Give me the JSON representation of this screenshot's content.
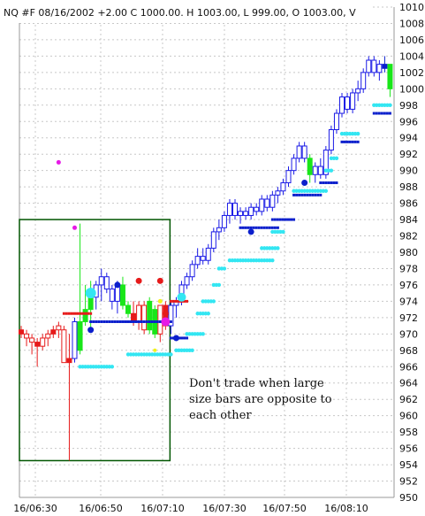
{
  "header": {
    "text": "NQ #F 08/16/2002  +2.00 C 1000.00. H 1003.00, L 999.00, O 1003.00,  V"
  },
  "annotation": {
    "line1": "Don't trade when large",
    "line2": "size bars are opposite to",
    "line3": "each other"
  },
  "colors": {
    "up": "#1a1ae6",
    "down": "#e61a1a",
    "green": "#19e619",
    "cyan": "#33e6f2",
    "navy": "#0b1fcc",
    "magenta": "#e619e6",
    "yellow": "#f2f21a",
    "box": "#005500",
    "grid": "#c8c8c8"
  },
  "chart_data": {
    "type": "candlestick",
    "title": "NQ #F 08/16/2002",
    "x_tick_labels": [
      "16/06:30",
      "16/06:50",
      "16/07:10",
      "16/07:30",
      "16/07:50",
      "16/08:10"
    ],
    "y_tick_labels": [
      "950",
      "952",
      "954",
      "956",
      "958",
      "960",
      "962",
      "964",
      "966",
      "968",
      "970",
      "972",
      "974",
      "976",
      "978",
      "980",
      "982",
      "984",
      "986",
      "988",
      "990",
      "992",
      "994",
      "996",
      "998",
      "1000",
      "1002",
      "1004",
      "1006",
      "1008",
      "1010"
    ],
    "ylim": [
      950,
      1010
    ],
    "grid": true,
    "bars": [
      {
        "o": 970.5,
        "h": 971.0,
        "l": 969.5,
        "c": 970.0,
        "col": "down"
      },
      {
        "o": 970.0,
        "h": 970.5,
        "l": 968.5,
        "c": 969.5,
        "col": "down"
      },
      {
        "o": 969.5,
        "h": 970.0,
        "l": 967.5,
        "c": 969.0,
        "col": "down"
      },
      {
        "o": 969.0,
        "h": 969.5,
        "l": 966.0,
        "c": 968.5,
        "col": "down"
      },
      {
        "o": 968.5,
        "h": 970.0,
        "l": 968.0,
        "c": 969.5,
        "col": "down"
      },
      {
        "o": 969.5,
        "h": 970.5,
        "l": 968.5,
        "c": 970.0,
        "col": "down"
      },
      {
        "o": 970.0,
        "h": 971.0,
        "l": 969.5,
        "c": 970.5,
        "col": "down"
      },
      {
        "o": 971.0,
        "h": 971.5,
        "l": 969.5,
        "c": 970.5,
        "col": "down"
      },
      {
        "o": 970.5,
        "h": 971.0,
        "l": 966.5,
        "c": 966.5,
        "col": "down"
      },
      {
        "o": 967.0,
        "h": 970.0,
        "l": 954.5,
        "c": 966.5,
        "col": "down"
      },
      {
        "o": 967.0,
        "h": 972.0,
        "l": 966.5,
        "c": 971.5,
        "col": "up"
      },
      {
        "o": 968.0,
        "h": 983.5,
        "l": 967.5,
        "c": 971.5,
        "col": "green"
      },
      {
        "o": 971.5,
        "h": 976.0,
        "l": 971.0,
        "c": 973.0,
        "col": "green"
      },
      {
        "o": 973.0,
        "h": 976.5,
        "l": 970.5,
        "c": 974.5,
        "col": "green"
      },
      {
        "o": 974.5,
        "h": 976.5,
        "l": 973.0,
        "c": 976.0,
        "col": "up"
      },
      {
        "o": 976.0,
        "h": 978.0,
        "l": 974.0,
        "c": 977.0,
        "col": "up"
      },
      {
        "o": 977.0,
        "h": 977.5,
        "l": 975.0,
        "c": 975.5,
        "col": "up"
      },
      {
        "o": 975.5,
        "h": 976.0,
        "l": 973.0,
        "c": 974.0,
        "col": "up"
      },
      {
        "o": 974.0,
        "h": 976.5,
        "l": 972.5,
        "c": 976.0,
        "col": "up"
      },
      {
        "o": 976.0,
        "h": 977.0,
        "l": 973.0,
        "c": 973.5,
        "col": "green"
      },
      {
        "o": 973.5,
        "h": 974.0,
        "l": 972.0,
        "c": 972.5,
        "col": "green"
      },
      {
        "o": 972.5,
        "h": 974.0,
        "l": 971.0,
        "c": 971.5,
        "col": "down"
      },
      {
        "o": 971.5,
        "h": 974.0,
        "l": 970.5,
        "c": 973.5,
        "col": "down"
      },
      {
        "o": 973.5,
        "h": 974.0,
        "l": 970.0,
        "c": 970.5,
        "col": "down"
      },
      {
        "o": 970.5,
        "h": 974.5,
        "l": 970.0,
        "c": 974.0,
        "col": "green"
      },
      {
        "o": 973.0,
        "h": 973.5,
        "l": 969.5,
        "c": 970.0,
        "col": "green"
      },
      {
        "o": 970.0,
        "h": 973.5,
        "l": 969.0,
        "c": 973.5,
        "col": "down"
      },
      {
        "o": 973.5,
        "h": 974.0,
        "l": 970.5,
        "c": 971.0,
        "col": "down"
      },
      {
        "o": 971.0,
        "h": 974.0,
        "l": 970.0,
        "c": 973.5,
        "col": "up"
      },
      {
        "o": 973.5,
        "h": 974.5,
        "l": 972.0,
        "c": 974.0,
        "col": "up"
      },
      {
        "o": 974.0,
        "h": 976.5,
        "l": 973.5,
        "c": 976.0,
        "col": "up"
      },
      {
        "o": 976.0,
        "h": 977.5,
        "l": 975.5,
        "c": 977.0,
        "col": "up"
      },
      {
        "o": 977.0,
        "h": 979.0,
        "l": 976.5,
        "c": 978.5,
        "col": "up"
      },
      {
        "o": 978.5,
        "h": 980.5,
        "l": 978.0,
        "c": 979.5,
        "col": "up"
      },
      {
        "o": 979.5,
        "h": 980.5,
        "l": 978.5,
        "c": 979.0,
        "col": "up"
      },
      {
        "o": 979.0,
        "h": 981.0,
        "l": 978.5,
        "c": 980.5,
        "col": "up"
      },
      {
        "o": 980.5,
        "h": 983.0,
        "l": 980.0,
        "c": 982.5,
        "col": "up"
      },
      {
        "o": 982.5,
        "h": 984.0,
        "l": 981.5,
        "c": 983.0,
        "col": "up"
      },
      {
        "o": 983.0,
        "h": 985.0,
        "l": 982.5,
        "c": 984.5,
        "col": "up"
      },
      {
        "o": 984.5,
        "h": 986.5,
        "l": 983.5,
        "c": 986.0,
        "col": "up"
      },
      {
        "o": 986.0,
        "h": 986.5,
        "l": 984.0,
        "c": 984.5,
        "col": "up"
      },
      {
        "o": 984.5,
        "h": 985.5,
        "l": 983.5,
        "c": 985.0,
        "col": "up"
      },
      {
        "o": 985.0,
        "h": 985.5,
        "l": 984.0,
        "c": 984.5,
        "col": "up"
      },
      {
        "o": 984.5,
        "h": 986.0,
        "l": 984.0,
        "c": 985.5,
        "col": "up"
      },
      {
        "o": 985.5,
        "h": 986.0,
        "l": 984.5,
        "c": 985.0,
        "col": "up"
      },
      {
        "o": 985.0,
        "h": 987.0,
        "l": 984.5,
        "c": 986.5,
        "col": "up"
      },
      {
        "o": 986.5,
        "h": 987.0,
        "l": 985.0,
        "c": 985.5,
        "col": "up"
      },
      {
        "o": 985.5,
        "h": 987.5,
        "l": 985.0,
        "c": 987.0,
        "col": "up"
      },
      {
        "o": 987.0,
        "h": 988.0,
        "l": 986.0,
        "c": 987.5,
        "col": "up"
      },
      {
        "o": 987.5,
        "h": 989.0,
        "l": 987.0,
        "c": 988.5,
        "col": "up"
      },
      {
        "o": 988.5,
        "h": 990.5,
        "l": 988.0,
        "c": 990.0,
        "col": "up"
      },
      {
        "o": 990.0,
        "h": 992.0,
        "l": 989.5,
        "c": 991.5,
        "col": "up"
      },
      {
        "o": 991.5,
        "h": 993.5,
        "l": 991.0,
        "c": 993.0,
        "col": "up"
      },
      {
        "o": 993.0,
        "h": 993.5,
        "l": 991.0,
        "c": 991.5,
        "col": "up"
      },
      {
        "o": 991.5,
        "h": 992.0,
        "l": 988.5,
        "c": 989.5,
        "col": "green"
      },
      {
        "o": 989.5,
        "h": 991.0,
        "l": 988.5,
        "c": 990.5,
        "col": "up"
      },
      {
        "o": 990.5,
        "h": 991.5,
        "l": 989.0,
        "c": 989.5,
        "col": "up"
      },
      {
        "o": 989.5,
        "h": 993.0,
        "l": 989.0,
        "c": 992.5,
        "col": "up"
      },
      {
        "o": 992.5,
        "h": 995.5,
        "l": 992.0,
        "c": 995.0,
        "col": "up"
      },
      {
        "o": 995.0,
        "h": 997.5,
        "l": 994.5,
        "c": 997.0,
        "col": "up"
      },
      {
        "o": 997.0,
        "h": 999.5,
        "l": 996.5,
        "c": 999.0,
        "col": "up"
      },
      {
        "o": 999.0,
        "h": 999.5,
        "l": 997.0,
        "c": 997.5,
        "col": "up"
      },
      {
        "o": 997.5,
        "h": 1000.0,
        "l": 997.0,
        "c": 999.5,
        "col": "up"
      },
      {
        "o": 999.5,
        "h": 1001.0,
        "l": 998.5,
        "c": 1000.0,
        "col": "up"
      },
      {
        "o": 1000.0,
        "h": 1002.5,
        "l": 999.5,
        "c": 1002.0,
        "col": "up"
      },
      {
        "o": 1002.0,
        "h": 1004.0,
        "l": 1001.5,
        "c": 1003.5,
        "col": "up"
      },
      {
        "o": 1003.5,
        "h": 1004.0,
        "l": 1001.5,
        "c": 1002.0,
        "col": "up"
      },
      {
        "o": 1002.0,
        "h": 1003.5,
        "l": 1001.0,
        "c": 1003.0,
        "col": "up"
      },
      {
        "o": 1003.0,
        "h": 1004.0,
        "l": 1002.0,
        "c": 1002.5,
        "col": "navy"
      },
      {
        "o": 1003.0,
        "h": 1003.0,
        "l": 999.0,
        "c": 1000.0,
        "col": "green"
      }
    ],
    "dot_series": [
      {
        "color": "cyan",
        "y": 966.0,
        "from": 11,
        "to": 17
      },
      {
        "color": "cyan",
        "y": 967.5,
        "from": 20,
        "to": 28
      },
      {
        "color": "cyan",
        "y": 968.0,
        "from": 29,
        "to": 32
      },
      {
        "color": "cyan",
        "y": 970.0,
        "from": 31,
        "to": 34
      },
      {
        "color": "cyan",
        "y": 972.5,
        "from": 33,
        "to": 35
      },
      {
        "color": "cyan",
        "y": 974.0,
        "from": 34,
        "to": 36
      },
      {
        "color": "cyan",
        "y": 976.0,
        "from": 36,
        "to": 37
      },
      {
        "color": "cyan",
        "y": 978.0,
        "from": 37,
        "to": 38
      },
      {
        "color": "cyan",
        "y": 979.0,
        "from": 39,
        "to": 47
      },
      {
        "color": "cyan",
        "y": 980.5,
        "from": 45,
        "to": 48
      },
      {
        "color": "cyan",
        "y": 982.5,
        "from": 47,
        "to": 49
      },
      {
        "color": "cyan",
        "y": 987.5,
        "from": 51,
        "to": 57
      },
      {
        "color": "cyan",
        "y": 990.0,
        "from": 57,
        "to": 58
      },
      {
        "color": "cyan",
        "y": 991.5,
        "from": 58,
        "to": 59
      },
      {
        "color": "cyan",
        "y": 994.5,
        "from": 60,
        "to": 63
      },
      {
        "color": "cyan",
        "y": 998.0,
        "from": 66,
        "to": 69
      },
      {
        "color": "navy",
        "y": 971.5,
        "from": 13,
        "to": 28
      },
      {
        "color": "navy",
        "y": 969.5,
        "from": 28,
        "to": 31
      },
      {
        "color": "navy",
        "y": 983.0,
        "from": 41,
        "to": 48
      },
      {
        "color": "navy",
        "y": 984.0,
        "from": 47,
        "to": 51
      },
      {
        "color": "navy",
        "y": 987.0,
        "from": 51,
        "to": 56
      },
      {
        "color": "navy",
        "y": 988.5,
        "from": 56,
        "to": 59
      },
      {
        "color": "navy",
        "y": 993.5,
        "from": 60,
        "to": 63
      },
      {
        "color": "navy",
        "y": 997.0,
        "from": 66,
        "to": 69
      },
      {
        "color": "down",
        "y": 972.5,
        "from": 8,
        "to": 13
      },
      {
        "color": "down",
        "y": 974.0,
        "from": 28,
        "to": 31
      }
    ],
    "markers": [
      {
        "color": "magenta",
        "i": 7,
        "y": 991.0,
        "r": 2.5
      },
      {
        "color": "magenta",
        "i": 10,
        "y": 983.0,
        "r": 2.5
      },
      {
        "color": "magenta",
        "i": 27,
        "y": 971.5,
        "r": 5
      },
      {
        "color": "cyan",
        "i": 13,
        "y": 975.0,
        "r": 6
      },
      {
        "color": "cyan",
        "i": 30,
        "y": 974.5,
        "r": 5
      },
      {
        "color": "navy",
        "i": 13,
        "y": 970.5,
        "r": 3.5
      },
      {
        "color": "navy",
        "i": 18,
        "y": 976.0,
        "r": 3.5
      },
      {
        "color": "navy",
        "i": 29,
        "y": 969.5,
        "r": 3.5
      },
      {
        "color": "navy",
        "i": 43,
        "y": 982.5,
        "r": 3.5
      },
      {
        "color": "navy",
        "i": 53,
        "y": 988.5,
        "r": 3.5
      },
      {
        "color": "down",
        "i": 22,
        "y": 976.5,
        "r": 3.5
      },
      {
        "color": "down",
        "i": 26,
        "y": 976.5,
        "r": 3.5
      },
      {
        "color": "down",
        "i": 27,
        "y": 972.5,
        "r": 3.5
      },
      {
        "color": "yellow",
        "i": 26,
        "y": 974.0,
        "r": 2.5
      },
      {
        "color": "yellow",
        "i": 25,
        "y": 968.0,
        "r": 2
      }
    ],
    "box": {
      "i_from": 0,
      "i_to": 27.5,
      "y_top": 984.0,
      "y_bottom": 954.5
    }
  }
}
